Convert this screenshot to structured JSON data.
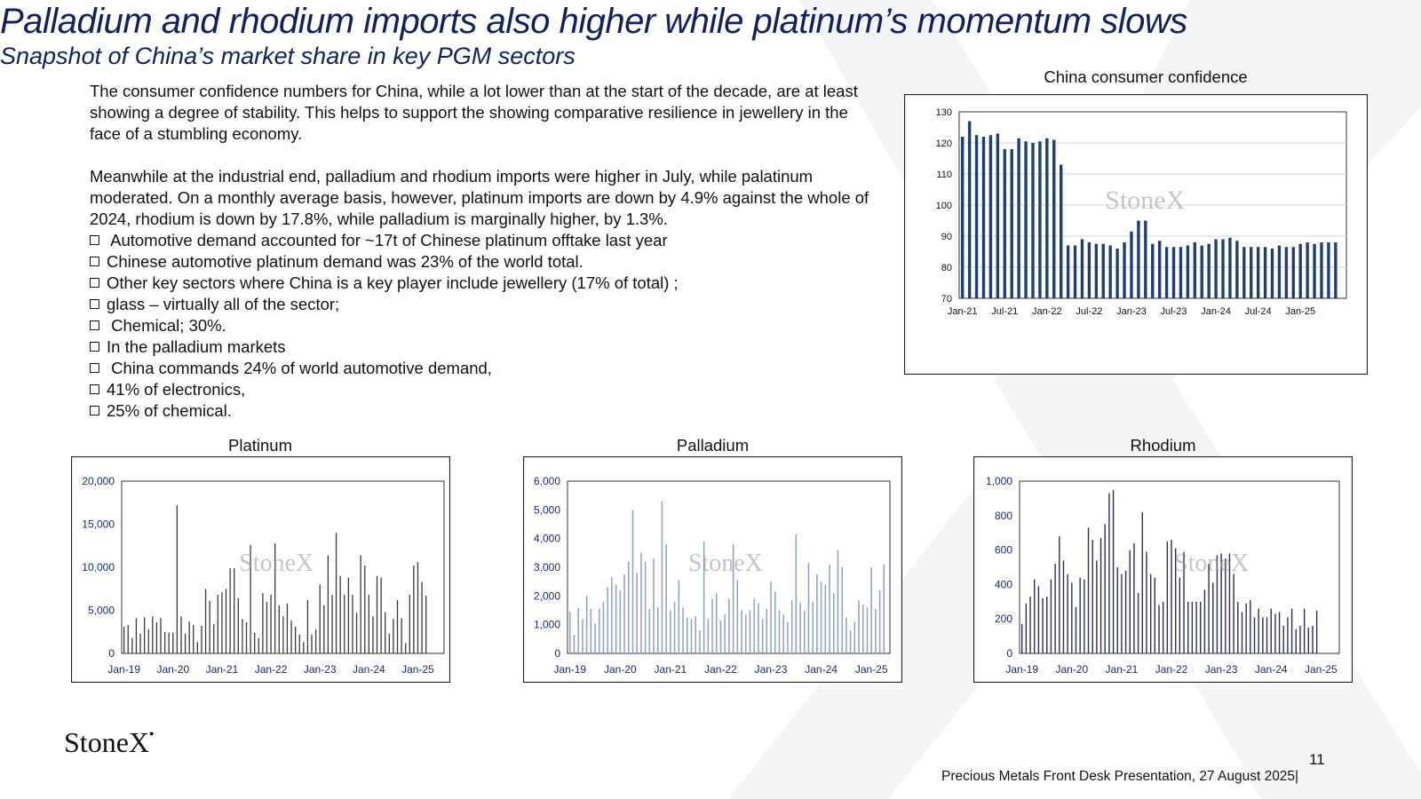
{
  "slide": {
    "title": "Palladium and rhodium imports also higher while platinum’s momentum slows",
    "subtitle": "Snapshot of China’s market share in key PGM sectors",
    "paragraphs": [
      "The consumer confidence numbers for China, while a lot lower than at the start of the decade, are at least showing a degree of stability.  This helps to support the showing comparative resilience in jewellery in the face of  a stumbling economy.",
      "Meanwhile at the industrial end, palladium and rhodium imports were higher in July, while palatinum moderated.  On a monthly average basis, however, platinum imports are down by 4.9% against the whole of 2024, rhodium is down by 17.8%, while palladium is marginally higher, by 1.3%."
    ],
    "bullets": [
      " Automotive demand accounted for ~17t of Chinese platinum offtake last year",
      "Chinese automotive platinum demand was 23% of the world total.",
      "Other key sectors where China is a key player include jewellery (17% of total) ;",
      "glass – virtually all of the sector;",
      " Chemical; 30%.",
      "In the palladium markets",
      " China commands 24% of world automotive demand,",
      "41% of electronics,",
      "25% of chemical."
    ],
    "bullet_icon": "checkbox-bullet-icon",
    "logo": "StoneX",
    "page_number": "11",
    "footer": "Precious Metals Front Desk Presentation, 27 August 2025|",
    "colors": {
      "title": "#13205e",
      "consumer_bars": "#1f3f73",
      "platinum_bars": "#3a3a3a",
      "palladium_bars": "#8ea0c0",
      "rhodium_bars": "#2e2e55"
    }
  },
  "chart_data": [
    {
      "id": "consumer",
      "type": "bar",
      "title": "China consumer confidence",
      "watermark": "StoneX",
      "x_tick_labels": [
        "Jan-21",
        "Jul-21",
        "Jan-22",
        "Jul-22",
        "Jan-23",
        "Jul-23",
        "Jan-24",
        "Jul-24",
        "Jan-25"
      ],
      "y_tick_labels": [
        "70",
        "80",
        "90",
        "100",
        "110",
        "120",
        "130"
      ],
      "ylim": [
        70,
        130
      ],
      "x_start": "Jan-21",
      "values": [
        122,
        127,
        122.5,
        122,
        122.5,
        123,
        118,
        118,
        121.5,
        120.5,
        120,
        120.5,
        121.5,
        121,
        113,
        87,
        87,
        89,
        88,
        87.5,
        87.5,
        87,
        86,
        88,
        91.5,
        95,
        95,
        87.5,
        88.5,
        86.5,
        86.5,
        86.5,
        87,
        88,
        87,
        87.5,
        89,
        89,
        89.5,
        88.5,
        86.5,
        86.5,
        86.5,
        86.5,
        86,
        87,
        86.5,
        86.5,
        87.5,
        88,
        87.5,
        88,
        88,
        88
      ]
    },
    {
      "id": "platinum",
      "type": "bar",
      "title": "Platinum",
      "watermark": "StoneX",
      "x_tick_labels": [
        "Jan-19",
        "Jan-20",
        "Jan-21",
        "Jan-22",
        "Jan-23",
        "Jan-24",
        "Jan-25"
      ],
      "y_tick_labels": [
        "0",
        "5,000",
        "10,000",
        "15,000",
        "20,000"
      ],
      "ylim": [
        0,
        20000
      ],
      "x_start": "Jan-19",
      "values": [
        3100,
        3300,
        1800,
        4100,
        2300,
        4200,
        2800,
        4300,
        3600,
        4100,
        2500,
        2400,
        2400,
        17200,
        4300,
        2300,
        3700,
        3300,
        1300,
        3200,
        7500,
        6100,
        3400,
        6800,
        7100,
        7500,
        9900,
        9900,
        6400,
        4000,
        3600,
        12600,
        2400,
        1800,
        7000,
        6000,
        6800,
        12800,
        5600,
        4300,
        5800,
        3800,
        3100,
        2200,
        1300,
        6200,
        2200,
        2800,
        8000,
        5600,
        11400,
        6800,
        14000,
        9000,
        6800,
        8800,
        6800,
        4700,
        11400,
        10200,
        6800,
        4300,
        9000,
        8800,
        4800,
        2300,
        4000,
        6200,
        4100,
        1200,
        6800,
        10200,
        10600,
        8300,
        6700
      ]
    },
    {
      "id": "palladium",
      "type": "bar",
      "title": "Palladium",
      "watermark": "StoneX",
      "x_tick_labels": [
        "Jan-19",
        "Jan-20",
        "Jan-21",
        "Jan-22",
        "Jan-23",
        "Jan-24",
        "Jan-25"
      ],
      "y_tick_labels": [
        "0",
        "1,000",
        "2,000",
        "3,000",
        "4,000",
        "5,000",
        "6,000"
      ],
      "ylim": [
        0,
        6000
      ],
      "x_start": "Jan-19",
      "values": [
        1450,
        650,
        1580,
        1200,
        2000,
        1550,
        1050,
        1550,
        1800,
        2300,
        2650,
        2400,
        2200,
        2750,
        3200,
        5000,
        2800,
        3500,
        3200,
        1550,
        3300,
        1600,
        5300,
        3800,
        1500,
        1800,
        2550,
        1600,
        1250,
        1200,
        1300,
        800,
        3900,
        1200,
        1900,
        2100,
        1150,
        1350,
        1900,
        3800,
        2550,
        1500,
        1350,
        1500,
        1900,
        1750,
        1200,
        1550,
        2500,
        2150,
        1500,
        1350,
        1100,
        1850,
        4150,
        1750,
        1500,
        3150,
        1800,
        2750,
        2500,
        2400,
        3100,
        2100,
        3600,
        3000,
        1250,
        800,
        1100,
        1850,
        1700,
        1600,
        3000,
        1550,
        2200,
        3100
      ]
    },
    {
      "id": "rhodium",
      "type": "bar",
      "title": "Rhodium",
      "watermark": "StoneX",
      "x_tick_labels": [
        "Jan-19",
        "Jan-20",
        "Jan-21",
        "Jan-22",
        "Jan-23",
        "Jan-24",
        "Jan-25"
      ],
      "y_tick_labels": [
        "0",
        "200",
        "400",
        "600",
        "800",
        "1,000"
      ],
      "ylim": [
        0,
        1000
      ],
      "x_start": "Jan-19",
      "values": [
        170,
        290,
        330,
        430,
        390,
        320,
        330,
        430,
        520,
        680,
        540,
        460,
        410,
        270,
        440,
        430,
        730,
        660,
        540,
        670,
        750,
        930,
        950,
        500,
        460,
        480,
        600,
        640,
        350,
        820,
        590,
        460,
        440,
        280,
        300,
        650,
        660,
        610,
        440,
        590,
        300,
        300,
        300,
        300,
        370,
        520,
        410,
        570,
        580,
        550,
        580,
        460,
        300,
        240,
        290,
        310,
        210,
        260,
        210,
        210,
        260,
        230,
        240,
        160,
        210,
        260,
        140,
        160,
        260,
        150,
        160,
        250
      ]
    }
  ]
}
